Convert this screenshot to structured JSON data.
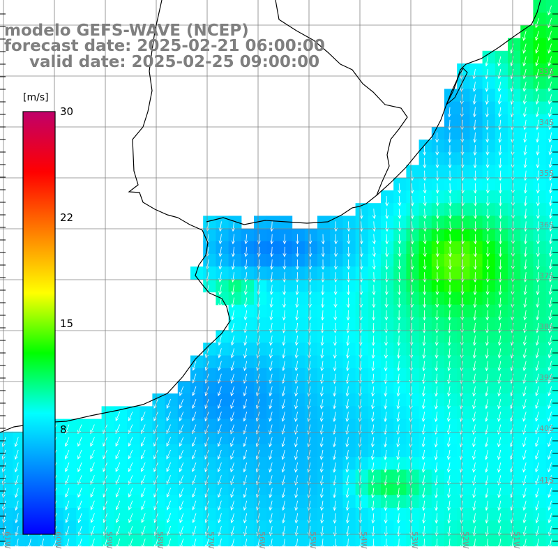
{
  "title": {
    "line1": "modelo GEFS-WAVE (NCEP)",
    "line2": "forecast date: 2025-02-21 06:00:00",
    "line3": "valid date: 2025-02-25 09:00:00"
  },
  "colorbar": {
    "unit": "[m/s]",
    "ticks": [
      "30",
      "22",
      "15",
      "8"
    ],
    "min": 0,
    "max": 30,
    "colors": [
      "#0000ff",
      "#0080ff",
      "#00ffff",
      "#00ff00",
      "#ffff00",
      "#ff8000",
      "#ff0000",
      "#c0006a"
    ]
  },
  "grid": {
    "lat_labels": [
      "33S",
      "34S",
      "35S",
      "36S",
      "37S",
      "38S",
      "39S",
      "40S",
      "41S"
    ],
    "lon_labels": [
      "61W",
      "60W",
      "59W",
      "58W",
      "57W",
      "56W",
      "55W",
      "54W",
      "53W",
      "52W",
      "51W"
    ]
  },
  "field": {
    "variable": "wind speed",
    "units": "m/s",
    "wind_direction": "from north-northeast"
  }
}
